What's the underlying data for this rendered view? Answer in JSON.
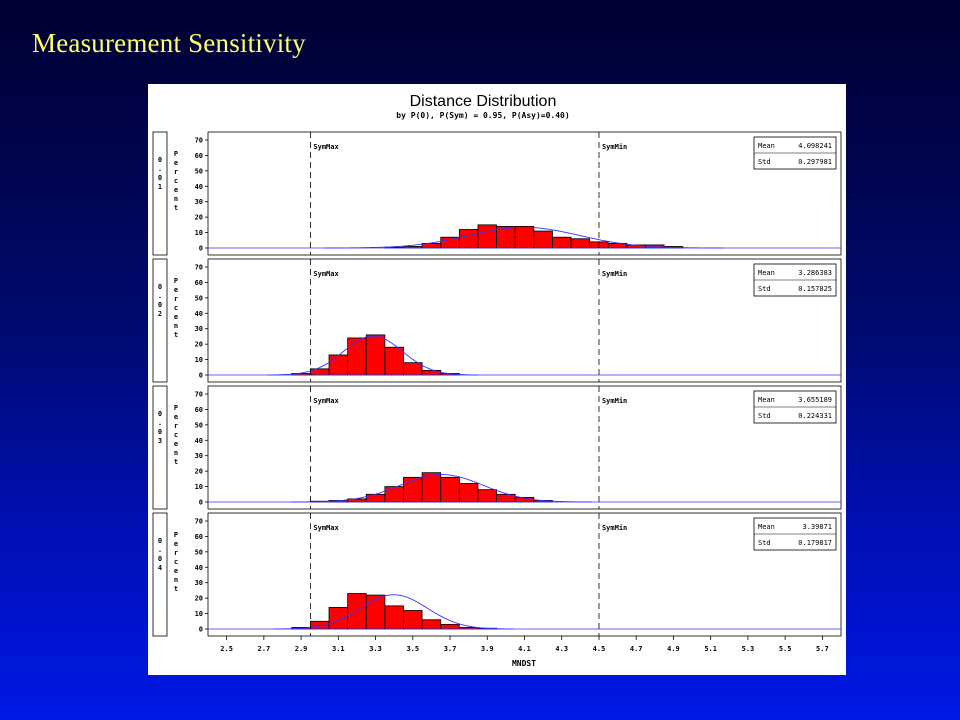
{
  "slide": {
    "title": "Measurement Sensitivity"
  },
  "chart_data": {
    "type": "bar",
    "title": "Distance Distribution",
    "subtitle": "by P(0), P(Sym) = 0.95, P(Asy)=0.40)",
    "xlabel": "MNDST",
    "ylabel": "Percent",
    "xlim": [
      2.4,
      5.8
    ],
    "ylim": [
      0,
      70
    ],
    "x_ticks": [
      2.5,
      2.7,
      2.9,
      3.1,
      3.3,
      3.5,
      3.7,
      3.9,
      4.1,
      4.3,
      4.5,
      4.7,
      4.9,
      5.1,
      5.3,
      5.5,
      5.7
    ],
    "y_ticks": [
      0,
      10,
      20,
      30,
      40,
      50,
      60,
      70
    ],
    "bin_width": 0.1,
    "reference_lines": [
      {
        "label": "SymMax",
        "x": 2.95
      },
      {
        "label": "SymMin",
        "x": 4.5
      }
    ],
    "stats_labels": {
      "mean": "Mean",
      "std": "Std"
    },
    "bar_color": "#ff0000",
    "curve_color": "#3333ff",
    "panels": [
      {
        "label": "0.01",
        "mean": 4.098241,
        "std": 0.297981,
        "mean_text": "4.098241",
        "std_text": "0.297981",
        "bins": [
          3.4,
          3.5,
          3.6,
          3.7,
          3.8,
          3.9,
          4.0,
          4.1,
          4.2,
          4.3,
          4.4,
          4.5,
          4.6,
          4.7,
          4.8,
          4.9
        ],
        "values": [
          0.5,
          1,
          3,
          7,
          12,
          15,
          14,
          14,
          11,
          7,
          6,
          4,
          3,
          2,
          2,
          1
        ]
      },
      {
        "label": "0.02",
        "mean": 3.286383,
        "std": 0.157825,
        "mean_text": "3.286383",
        "std_text": "0.157825",
        "bins": [
          2.9,
          3.0,
          3.1,
          3.2,
          3.3,
          3.4,
          3.5,
          3.6,
          3.7
        ],
        "values": [
          1,
          4,
          13,
          24,
          26,
          18,
          8,
          3,
          1
        ]
      },
      {
        "label": "0.03",
        "mean": 3.655189,
        "std": 0.224331,
        "mean_text": "3.655189",
        "std_text": "0.224331",
        "bins": [
          3.0,
          3.1,
          3.2,
          3.3,
          3.4,
          3.5,
          3.6,
          3.7,
          3.8,
          3.9,
          4.0,
          4.1,
          4.2
        ],
        "values": [
          0.5,
          1,
          2,
          5,
          10,
          16,
          19,
          16,
          12,
          8,
          5,
          3,
          1
        ]
      },
      {
        "label": "0.04",
        "mean": 3.39871,
        "std": 0.179817,
        "mean_text": "3.39871",
        "std_text": "0.179817",
        "bins": [
          2.9,
          3.0,
          3.1,
          3.2,
          3.3,
          3.4,
          3.5,
          3.6,
          3.7,
          3.8,
          3.9
        ],
        "values": [
          1,
          5,
          14,
          23,
          22,
          15,
          12,
          6,
          3,
          1,
          0.5
        ]
      }
    ]
  }
}
